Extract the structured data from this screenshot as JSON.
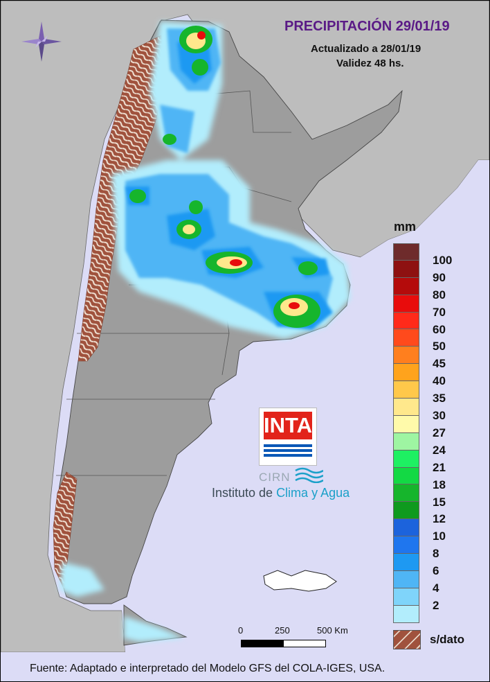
{
  "header": {
    "title": "PRECIPITACIÓN 29/01/19",
    "updated": "Actualizado a 28/01/19",
    "validity": "Validez 48 hs."
  },
  "legend": {
    "unit": "mm",
    "levels": [
      {
        "label": "100",
        "color": "#6e2b2b"
      },
      {
        "label": "90",
        "color": "#8e1111"
      },
      {
        "label": "80",
        "color": "#b40b0b"
      },
      {
        "label": "70",
        "color": "#e80c0c"
      },
      {
        "label": "60",
        "color": "#ff2a1a"
      },
      {
        "label": "50",
        "color": "#ff4a1c"
      },
      {
        "label": "45",
        "color": "#ff7f1e"
      },
      {
        "label": "40",
        "color": "#ffa31c"
      },
      {
        "label": "35",
        "color": "#ffc84a"
      },
      {
        "label": "30",
        "color": "#ffe88c"
      },
      {
        "label": "27",
        "color": "#fffaaa"
      },
      {
        "label": "24",
        "color": "#9ef5a2"
      },
      {
        "label": "21",
        "color": "#1ef062"
      },
      {
        "label": "18",
        "color": "#13d944"
      },
      {
        "label": "15",
        "color": "#16b52c"
      },
      {
        "label": "12",
        "color": "#0f9a1e"
      },
      {
        "label": "10",
        "color": "#1c63dc"
      },
      {
        "label": "8",
        "color": "#1f76ee"
      },
      {
        "label": "6",
        "color": "#1e99f2"
      },
      {
        "label": "4",
        "color": "#4fb5f5"
      },
      {
        "label": "2",
        "color": "#7fd4fa"
      },
      {
        "label": "",
        "color": "#b2edfc"
      }
    ],
    "no_data_label": "s/dato",
    "no_data_color": "#a0523d"
  },
  "logo": {
    "text": "INTA",
    "cirn": "CIRN",
    "institute_prefix": "Instituto de ",
    "institute_highlight": "Clima y Agua"
  },
  "scale": {
    "ticks": [
      "0",
      "250",
      "500 Km"
    ]
  },
  "footer": {
    "source": "Fuente: Adaptado e interpretado del Modelo GFS del COLA-IGES, USA."
  },
  "map": {
    "land_color": "#9d9d9d",
    "neighbor_color": "#bdbdbd",
    "ocean_color": "#dcdcf6",
    "rain_colors": {
      "light": "#b2edfc",
      "mid": "#4fb5f5",
      "heavy": "#1e99f2",
      "green": "#16b52c",
      "yellow": "#ffe88c",
      "orange": "#ff7f1e",
      "red": "#e80c0c"
    }
  }
}
